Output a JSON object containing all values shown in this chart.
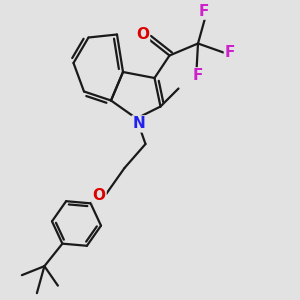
{
  "background_color": "#e2e2e2",
  "bond_color": "#1a1a1a",
  "bond_width": 1.6,
  "dbo": 0.12,
  "atom_colors": {
    "O": "#dd0000",
    "N": "#2222ee",
    "F": "#cc22cc"
  },
  "figsize": [
    3.0,
    3.0
  ],
  "dpi": 100,
  "xlim": [
    0,
    10
  ],
  "ylim": [
    0,
    10
  ]
}
